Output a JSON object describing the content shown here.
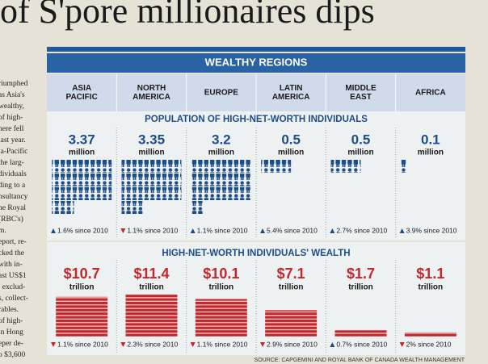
{
  "headline": "of S'pore millionaires dips",
  "banner": "WEALTHY REGIONS",
  "population_title": "POPULATION OF HIGH-NET-WORTH INDIVIDUALS",
  "wealth_title": "HIGH-NET-WORTH INDIVIDUALS' WEALTH",
  "source": "SOURCE: CAPGEMINI AND ROYAL BANK OF CANADA WEALTH MANAGEMENT",
  "regions": [
    {
      "name_lines": [
        "ASIA",
        "PACIFIC"
      ],
      "population": 3.37,
      "population_unit": "million",
      "population_change": "1.6% since 2010",
      "population_direction": "up",
      "wealth": 10.7,
      "wealth_label": "$10.7",
      "wealth_unit": "trillion",
      "wealth_change": "1.1% since 2010",
      "wealth_direction": "down"
    },
    {
      "name_lines": [
        "NORTH",
        "AMERICA"
      ],
      "population": 3.35,
      "population_unit": "million",
      "population_change": "1.1% since 2010",
      "population_direction": "down",
      "wealth": 11.4,
      "wealth_label": "$11.4",
      "wealth_unit": "trillion",
      "wealth_change": "2.3% since 2010",
      "wealth_direction": "down"
    },
    {
      "name_lines": [
        "EUROPE"
      ],
      "population": 3.2,
      "population_unit": "million",
      "population_change": "1.1% since 2010",
      "population_direction": "up",
      "wealth": 10.1,
      "wealth_label": "$10.1",
      "wealth_unit": "trillion",
      "wealth_change": "1.1% since 2010",
      "wealth_direction": "down"
    },
    {
      "name_lines": [
        "LATIN",
        "AMERICA"
      ],
      "population": 0.5,
      "population_unit": "million",
      "population_change": "5.4% since 2010",
      "population_direction": "up",
      "wealth": 7.1,
      "wealth_label": "$7.1",
      "wealth_unit": "trillion",
      "wealth_change": "2.9% since 2010",
      "wealth_direction": "down"
    },
    {
      "name_lines": [
        "MIDDLE",
        "EAST"
      ],
      "population": 0.5,
      "population_unit": "million",
      "population_change": "2.7% since 2010",
      "population_direction": "up",
      "wealth": 1.7,
      "wealth_label": "$1.7",
      "wealth_unit": "trillion",
      "wealth_change": "0.7% since 2010",
      "wealth_direction": "up"
    },
    {
      "name_lines": [
        "AFRICA"
      ],
      "population": 0.1,
      "population_unit": "million",
      "population_change": "3.9% since 2010",
      "population_direction": "up",
      "wealth": 1.1,
      "wealth_label": "$1.1",
      "wealth_unit": "trillion",
      "wealth_change": "2% since 2010",
      "wealth_direction": "down"
    }
  ],
  "side_text": [
    "riumphed",
    "as Asia's",
    "wealthy,",
    "of high-",
    "here fell",
    "last year.",
    "ia-Pacific",
    "the larg-",
    "dividuals",
    "ding to a",
    "nsultancy",
    "he Royal",
    "(RBC's)",
    "m.",
    "eport, re-",
    "cked the",
    "with in-",
    "ast US$1",
    ", exclud-",
    "s, collect-",
    "rables.",
    "of high-",
    "in Hong",
    "eper de-",
    "o $3,600"
  ]
}
